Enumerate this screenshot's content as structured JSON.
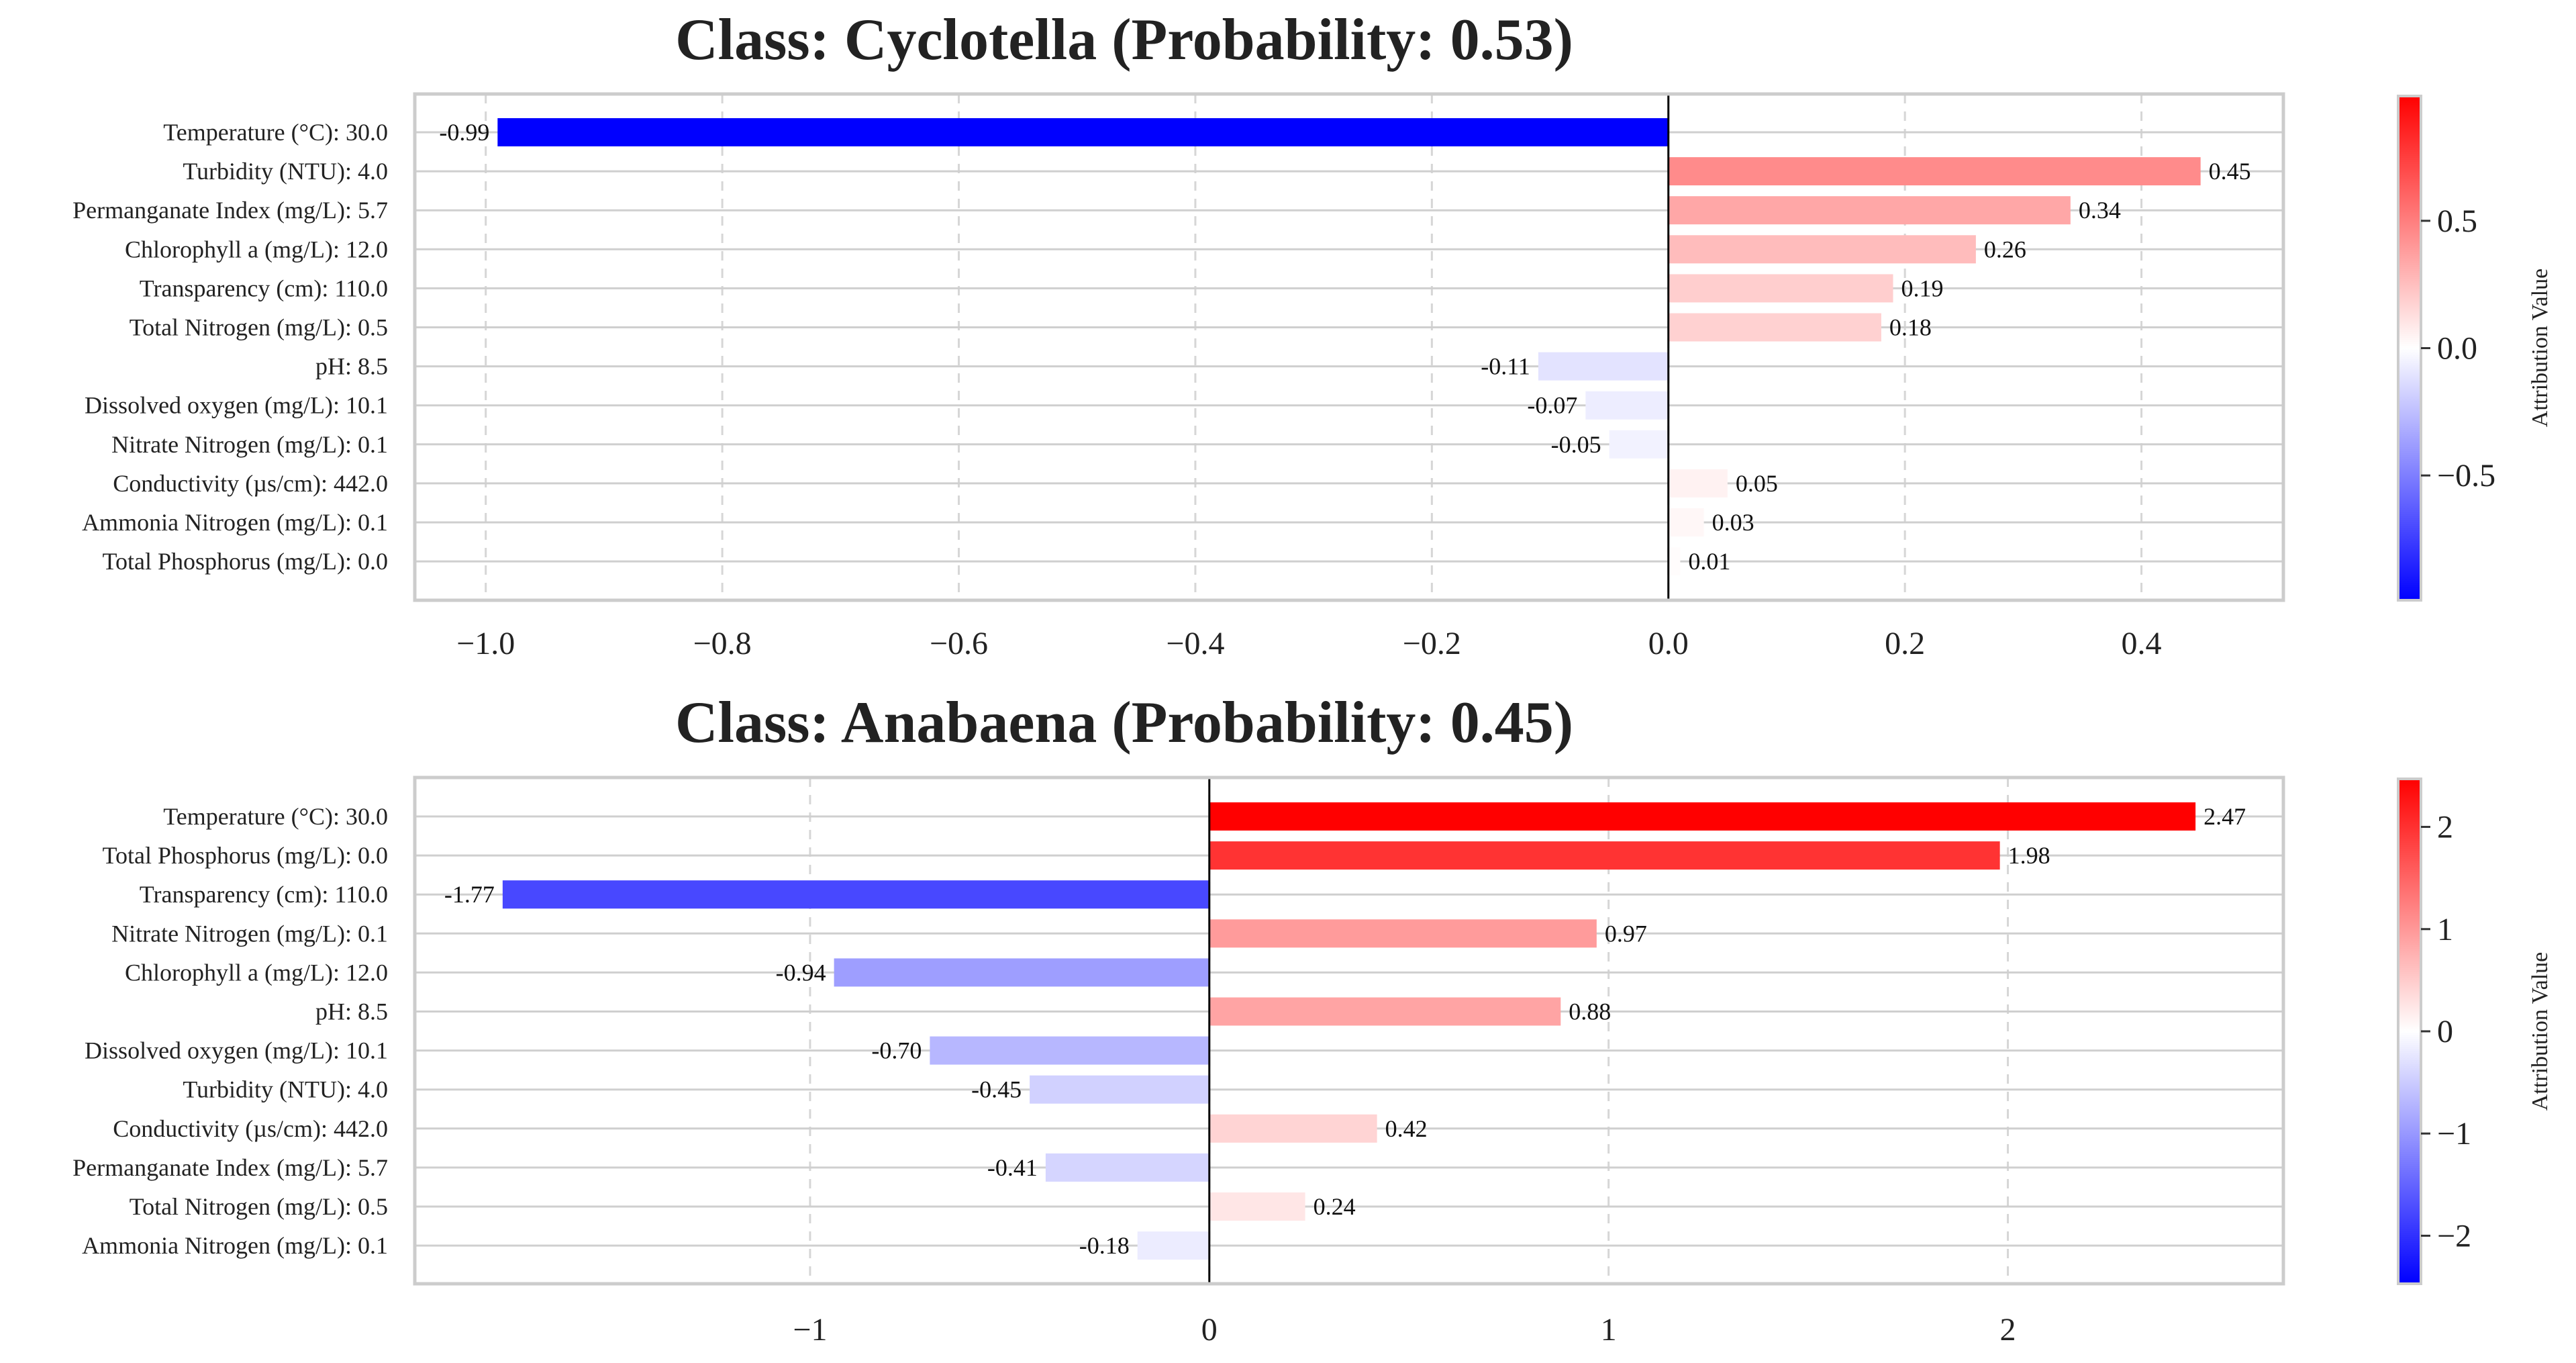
{
  "chart_data": [
    {
      "type": "bar",
      "orientation": "horizontal",
      "title": "Class: Cyclotella (Probability: 0.53)",
      "categories": [
        "Temperature (°C): 30.0",
        "Turbidity (NTU): 4.0",
        "Permanganate Index (mg/L): 5.7",
        "Chlorophyll a (mg/L): 12.0",
        "Transparency (cm): 110.0",
        "Total Nitrogen (mg/L): 0.5",
        "pH: 8.5",
        "Dissolved oxygen (mg/L): 10.1",
        "Nitrate Nitrogen (mg/L): 0.1",
        "Conductivity (µs/cm): 442.0",
        "Ammonia Nitrogen (mg/L): 0.1",
        "Total Phosphorus (mg/L): 0.0"
      ],
      "values": [
        -0.99,
        0.45,
        0.34,
        0.26,
        0.19,
        0.18,
        -0.11,
        -0.07,
        -0.05,
        0.05,
        0.03,
        0.01
      ],
      "value_labels": [
        "-0.99",
        "0.45",
        "0.34",
        "0.26",
        "0.19",
        "0.18",
        "-0.11",
        "-0.07",
        "-0.05",
        "0.05",
        "0.03",
        "0.01"
      ],
      "xlim": [
        -1.06,
        0.52
      ],
      "xticks": [
        -1.0,
        -0.8,
        -0.6,
        -0.4,
        -0.2,
        0.0,
        0.2,
        0.4
      ],
      "xtick_labels": [
        "−1.0",
        "−0.8",
        "−0.6",
        "−0.4",
        "−0.2",
        "0.0",
        "0.2",
        "0.4"
      ],
      "grid": true,
      "colormap": "bwr",
      "colorbar": {
        "label": "Attribution Value",
        "range": [
          -0.99,
          0.99
        ],
        "ticks": [
          -0.5,
          0.0,
          0.5
        ],
        "tick_labels": [
          "−0.5",
          "0.0",
          "0.5"
        ]
      }
    },
    {
      "type": "bar",
      "orientation": "horizontal",
      "title": "Class: Anabaena (Probability: 0.45)",
      "categories": [
        "Temperature (°C): 30.0",
        "Total Phosphorus (mg/L): 0.0",
        "Transparency (cm): 110.0",
        "Nitrate Nitrogen (mg/L): 0.1",
        "Chlorophyll a (mg/L): 12.0",
        "pH: 8.5",
        "Dissolved oxygen (mg/L): 10.1",
        "Turbidity (NTU): 4.0",
        "Conductivity (µs/cm): 442.0",
        "Permanganate Index (mg/L): 5.7",
        "Total Nitrogen (mg/L): 0.5",
        "Ammonia Nitrogen (mg/L): 0.1"
      ],
      "values": [
        2.47,
        1.98,
        -1.77,
        0.97,
        -0.94,
        0.88,
        -0.7,
        -0.45,
        0.42,
        -0.41,
        0.24,
        -0.18
      ],
      "value_labels": [
        "2.47",
        "1.98",
        "-1.77",
        "0.97",
        "-0.94",
        "0.88",
        "-0.70",
        "-0.45",
        "0.42",
        "-0.41",
        "0.24",
        "-0.18"
      ],
      "xlim": [
        -1.99,
        2.69
      ],
      "xticks": [
        -1,
        0,
        1,
        2
      ],
      "xtick_labels": [
        "−1",
        "0",
        "1",
        "2"
      ],
      "grid": true,
      "colormap": "bwr",
      "colorbar": {
        "label": "Attribution Value",
        "range": [
          -2.47,
          2.47
        ],
        "ticks": [
          -2,
          -1,
          0,
          1,
          2
        ],
        "tick_labels": [
          "−2",
          "−1",
          "0",
          "1",
          "2"
        ]
      }
    }
  ]
}
